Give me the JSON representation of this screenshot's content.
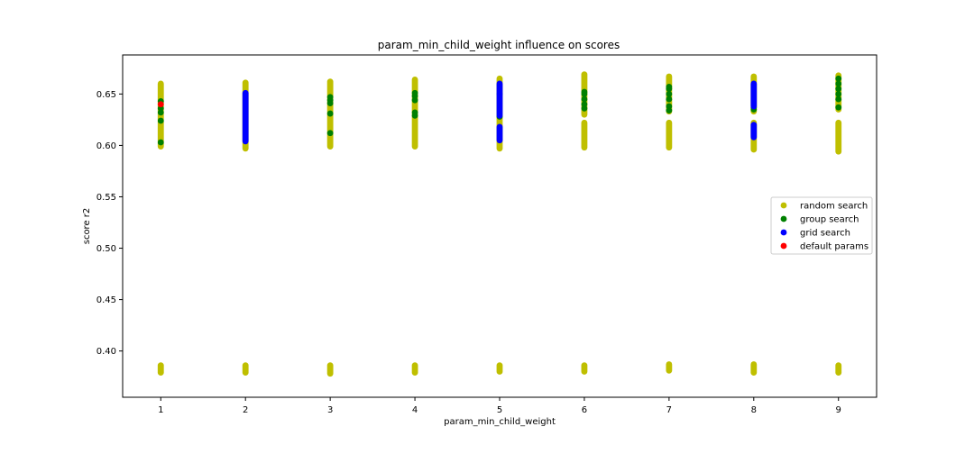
{
  "chart_data": {
    "type": "scatter",
    "title": "param_min_child_weight influence on scores",
    "xlabel": "param_min_child_weight",
    "ylabel": "score r2",
    "xlim": [
      0.55,
      9.45
    ],
    "ylim": [
      0.355,
      0.688
    ],
    "xticks": [
      1,
      2,
      3,
      4,
      5,
      6,
      7,
      8,
      9
    ],
    "xtick_labels": [
      "1",
      "2",
      "3",
      "4",
      "5",
      "6",
      "7",
      "8",
      "9"
    ],
    "yticks": [
      0.4,
      0.45,
      0.5,
      0.55,
      0.6,
      0.65
    ],
    "ytick_labels": [
      "0.40",
      "0.45",
      "0.50",
      "0.55",
      "0.60",
      "0.65"
    ],
    "grid": false,
    "legend_position": "right",
    "series": [
      {
        "name": "random search",
        "color": "#bfbf00",
        "points": [
          {
            "x": 1,
            "ranges": [
              [
                0.599,
                0.66
              ],
              [
                0.379,
                0.386
              ]
            ]
          },
          {
            "x": 2,
            "ranges": [
              [
                0.597,
                0.661
              ],
              [
                0.379,
                0.386
              ]
            ]
          },
          {
            "x": 3,
            "ranges": [
              [
                0.599,
                0.662
              ],
              [
                0.378,
                0.386
              ]
            ]
          },
          {
            "x": 4,
            "ranges": [
              [
                0.599,
                0.664
              ],
              [
                0.379,
                0.386
              ]
            ]
          },
          {
            "x": 5,
            "ranges": [
              [
                0.597,
                0.665
              ],
              [
                0.38,
                0.386
              ]
            ]
          },
          {
            "x": 6,
            "ranges": [
              [
                0.598,
                0.622
              ],
              [
                0.63,
                0.669
              ],
              [
                0.38,
                0.386
              ]
            ]
          },
          {
            "x": 7,
            "ranges": [
              [
                0.598,
                0.622
              ],
              [
                0.633,
                0.667
              ],
              [
                0.381,
                0.387
              ]
            ]
          },
          {
            "x": 8,
            "ranges": [
              [
                0.596,
                0.622
              ],
              [
                0.633,
                0.667
              ],
              [
                0.379,
                0.387
              ]
            ]
          },
          {
            "x": 9,
            "ranges": [
              [
                0.594,
                0.622
              ],
              [
                0.635,
                0.668
              ],
              [
                0.379,
                0.386
              ]
            ]
          }
        ]
      },
      {
        "name": "group search",
        "color": "#008000",
        "points": [
          {
            "x": 1,
            "values": [
              0.603,
              0.624,
              0.632,
              0.636,
              0.643
            ]
          },
          {
            "x": 3,
            "values": [
              0.612,
              0.631,
              0.641,
              0.644,
              0.647
            ]
          },
          {
            "x": 4,
            "values": [
              0.629,
              0.632,
              0.644,
              0.648,
              0.651
            ]
          },
          {
            "x": 5,
            "values": [
              0.628,
              0.65
            ]
          },
          {
            "x": 6,
            "values": [
              0.636,
              0.64,
              0.645,
              0.65,
              0.652
            ]
          },
          {
            "x": 7,
            "values": [
              0.634,
              0.638,
              0.645,
              0.65,
              0.655,
              0.657
            ]
          },
          {
            "x": 8,
            "values": [
              0.635,
              0.637
            ]
          },
          {
            "x": 9,
            "values": [
              0.637,
              0.645,
              0.65,
              0.655,
              0.66,
              0.665
            ]
          }
        ]
      },
      {
        "name": "grid search",
        "color": "#0000ff",
        "points": [
          {
            "x": 2,
            "ranges": [
              [
                0.604,
                0.651
              ]
            ]
          },
          {
            "x": 5,
            "ranges": [
              [
                0.605,
                0.618
              ],
              [
                0.629,
                0.66
              ]
            ]
          },
          {
            "x": 8,
            "ranges": [
              [
                0.608,
                0.62
              ],
              [
                0.638,
                0.66
              ]
            ]
          }
        ]
      },
      {
        "name": "default params",
        "color": "#ff0000",
        "points": [
          {
            "x": 1,
            "values": [
              0.64
            ]
          }
        ]
      }
    ]
  }
}
